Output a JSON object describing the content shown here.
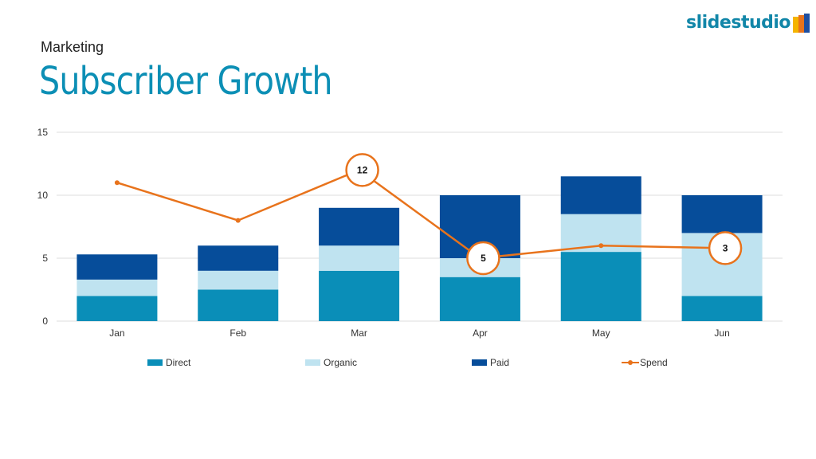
{
  "header": {
    "subtitle": "Marketing",
    "title": "Subscriber Growth",
    "logo": "slidestudio"
  },
  "chart_data": {
    "type": "bar",
    "stacked": true,
    "categories": [
      "Jan",
      "Feb",
      "Mar",
      "Apr",
      "May",
      "Jun"
    ],
    "series": [
      {
        "name": "Direct",
        "type": "bar",
        "color": "#0a8eb8",
        "values": [
          2,
          2.5,
          4,
          3.5,
          5.5,
          2
        ]
      },
      {
        "name": "Organic",
        "type": "bar",
        "color": "#bfe3f0",
        "values": [
          1.3,
          1.5,
          2,
          1.5,
          3,
          5
        ]
      },
      {
        "name": "Paid",
        "type": "bar",
        "color": "#064d9a",
        "values": [
          2,
          2,
          3,
          5,
          3,
          3
        ]
      },
      {
        "name": "Spend",
        "type": "line",
        "color": "#e8731c",
        "values": [
          11,
          8,
          12,
          5,
          6,
          5.8
        ]
      }
    ],
    "annotations": [
      {
        "category": "Mar",
        "label": "12"
      },
      {
        "category": "Apr",
        "label": "5"
      },
      {
        "category": "Jun",
        "label": "3"
      }
    ],
    "yticks": [
      "0",
      "5",
      "10",
      "15"
    ],
    "ylim": [
      0,
      15
    ],
    "grid": true,
    "legend": "bottom",
    "title": "",
    "xlabel": "",
    "ylabel": ""
  }
}
